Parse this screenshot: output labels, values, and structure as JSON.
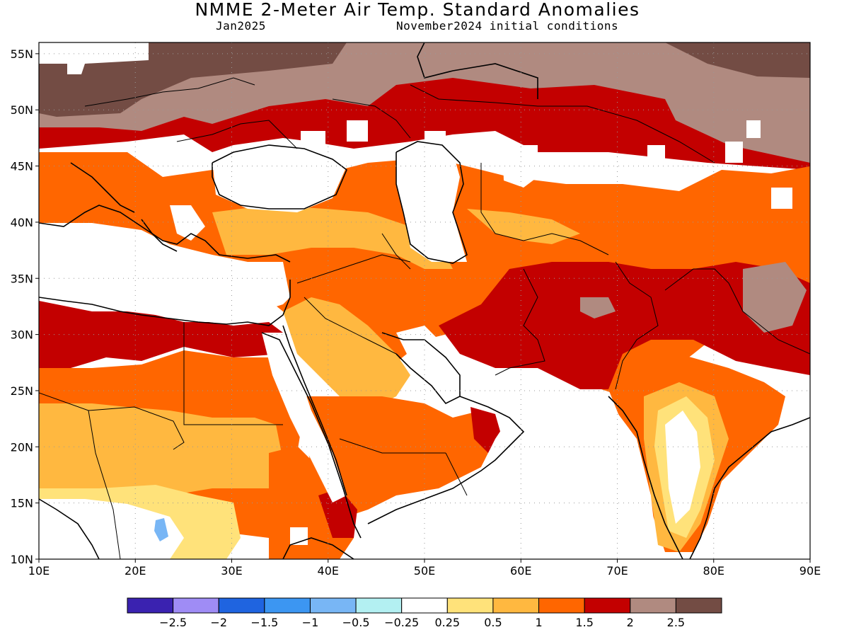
{
  "header": {
    "title": "NMME 2-Meter Air Temp. Standard Anomalies",
    "target_month": "Jan2025",
    "initial_conditions": "November2024 initial conditions"
  },
  "map": {
    "x_axis_labels": [
      "10E",
      "20E",
      "30E",
      "40E",
      "50E",
      "60E",
      "70E",
      "80E",
      "90E"
    ],
    "y_axis_labels": [
      "55N",
      "50N",
      "45N",
      "40N",
      "35N",
      "30N",
      "25N",
      "20N",
      "15N",
      "10N"
    ],
    "lon_range": [
      10,
      90
    ],
    "lat_range": [
      10,
      56
    ],
    "gridlines": "dotted"
  },
  "legend": {
    "colors": [
      "#3a22b0",
      "#9f8cf5",
      "#1f64e0",
      "#3c96f2",
      "#78b6f5",
      "#b3f0f2",
      "#ffffff",
      "#ffe27a",
      "#ffb840",
      "#ff6600",
      "#c30000",
      "#b08a80",
      "#734c44"
    ],
    "labels": [
      "−2.5",
      "−2",
      "−1.5",
      "−1",
      "−0.5",
      "−0.25",
      "0.25",
      "0.5",
      "1",
      "1.5",
      "2",
      "2.5"
    ]
  }
}
